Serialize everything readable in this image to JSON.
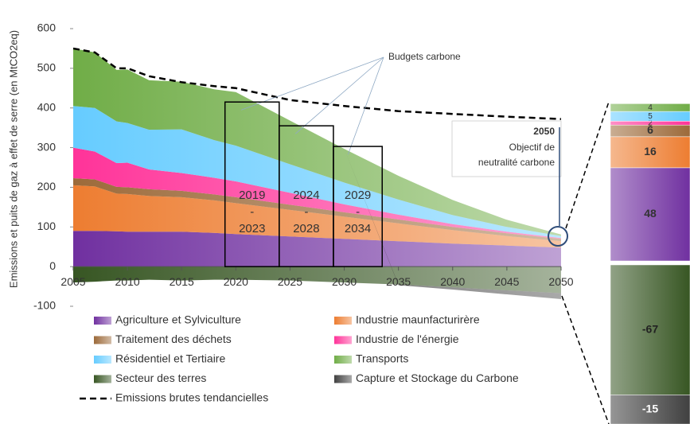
{
  "chart_data": {
    "type": "stacked-area",
    "y_label": "Emissions et puits de gaz à effet de serre (en MtCO2eq)",
    "x": [
      2005,
      2007,
      2009,
      2010,
      2012,
      2015,
      2018,
      2020,
      2025,
      2030,
      2035,
      2040,
      2045,
      2050
    ],
    "xlim": [
      2005,
      2050
    ],
    "xticks": [
      2005,
      2010,
      2015,
      2020,
      2025,
      2030,
      2035,
      2040,
      2045,
      2050
    ],
    "ylim": [
      -100,
      600
    ],
    "yticks": [
      -100,
      0,
      100,
      200,
      300,
      400,
      500,
      600
    ],
    "series": [
      {
        "name": "Agriculture et Sylviculture",
        "color": "#7030a0",
        "values": [
          90,
          90,
          89,
          88,
          88,
          88,
          85,
          82,
          76,
          70,
          64,
          58,
          53,
          48
        ]
      },
      {
        "name": "Industrie maunfacturirère",
        "color": "#ed7d31",
        "values": [
          115,
          112,
          95,
          95,
          90,
          87,
          82,
          78,
          67,
          56,
          45,
          34,
          24,
          16
        ]
      },
      {
        "name": "Traitement des déchets",
        "color": "#9c6a3a",
        "values": [
          18,
          18,
          17,
          17,
          17,
          16,
          15,
          15,
          13,
          11,
          10,
          8,
          7,
          6
        ]
      },
      {
        "name": "Industrie de l'énergie",
        "color": "#ff3399",
        "values": [
          77,
          70,
          60,
          62,
          50,
          45,
          42,
          40,
          30,
          20,
          12,
          7,
          4,
          2
        ]
      },
      {
        "name": "Résidentiel et Tertiaire",
        "color": "#66ccff",
        "values": [
          105,
          110,
          105,
          100,
          100,
          110,
          95,
          90,
          72,
          55,
          38,
          23,
          12,
          5
        ]
      },
      {
        "name": "Transports",
        "color": "#70ad47",
        "values": [
          145,
          140,
          130,
          135,
          125,
          120,
          128,
          135,
          110,
          85,
          60,
          38,
          18,
          4
        ]
      },
      {
        "name": "Secteur des terres",
        "color": "#375623",
        "values": [
          -40,
          -38,
          -35,
          -35,
          -33,
          -35,
          -33,
          -33,
          -35,
          -40,
          -45,
          -52,
          -60,
          -67
        ]
      },
      {
        "name": "Capture et Stockage du Carbone",
        "color": "#404040",
        "values": [
          0,
          0,
          0,
          0,
          0,
          0,
          0,
          0,
          0,
          0,
          -2,
          -6,
          -10,
          -15
        ]
      }
    ],
    "lines": [
      {
        "name": "Emissions brutes tendancielles",
        "color": "#000000",
        "values": [
          550,
          540,
          500,
          500,
          480,
          465,
          455,
          450,
          420,
          405,
          392,
          385,
          378,
          372
        ]
      }
    ],
    "budgets_label": "Budgets carbone",
    "budgets": [
      {
        "period": [
          "2019",
          "-",
          "2023"
        ],
        "xrange": [
          2019,
          2024
        ],
        "value": 415
      },
      {
        "period": [
          "2024",
          "-",
          "2028"
        ],
        "xrange": [
          2024,
          2029
        ],
        "value": 355
      },
      {
        "period": [
          "2029",
          "-",
          "2034"
        ],
        "xrange": [
          2029,
          2033.5
        ],
        "value": 303
      }
    ],
    "annotation": {
      "year": "2050",
      "lines": [
        "Objectif de",
        "neutralité carbone"
      ]
    }
  }
}
